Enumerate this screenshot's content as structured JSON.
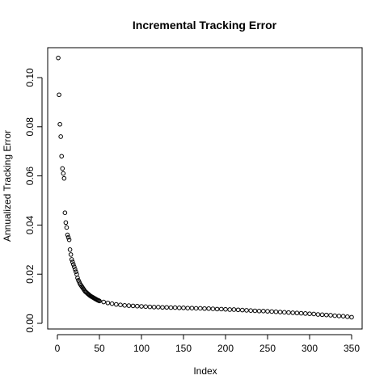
{
  "chart_data": {
    "type": "scatter",
    "title": "Incremental Tracking Error",
    "xlabel": "Index",
    "ylabel": "Annualized Tracking Error",
    "xlim": [
      0,
      350
    ],
    "ylim": [
      0,
      0.11
    ],
    "x_ticks": [
      0,
      50,
      100,
      150,
      200,
      250,
      300,
      350
    ],
    "y_ticks": [
      "0.00",
      "0.02",
      "0.04",
      "0.06",
      "0.08",
      "0.10"
    ],
    "grid": false,
    "legend": "none",
    "marker": "open-circle",
    "color": "#000000",
    "series": [
      {
        "x": [
          1,
          2,
          3,
          4,
          5,
          6,
          7,
          8,
          9,
          10,
          11,
          12,
          13,
          14,
          15,
          16,
          17,
          18,
          19,
          20,
          21,
          22,
          23,
          24,
          25,
          26,
          27,
          28,
          29,
          30,
          31,
          32,
          33,
          34,
          35,
          36,
          37,
          38,
          39,
          40,
          41,
          42,
          43,
          44,
          45,
          46,
          47,
          48,
          49,
          50,
          55,
          60,
          65,
          70,
          75,
          80,
          85,
          90,
          95,
          100,
          105,
          110,
          115,
          120,
          125,
          130,
          135,
          140,
          145,
          150,
          155,
          160,
          165,
          170,
          175,
          180,
          185,
          190,
          195,
          200,
          205,
          210,
          215,
          220,
          225,
          230,
          235,
          240,
          245,
          250,
          255,
          260,
          265,
          270,
          275,
          280,
          285,
          290,
          295,
          300,
          305,
          310,
          315,
          320,
          325,
          330,
          335,
          340,
          345,
          350
        ],
        "y": [
          0.108,
          0.093,
          0.081,
          0.076,
          0.068,
          0.063,
          0.061,
          0.059,
          0.045,
          0.041,
          0.039,
          0.036,
          0.035,
          0.034,
          0.03,
          0.028,
          0.026,
          0.025,
          0.024,
          0.023,
          0.022,
          0.021,
          0.02,
          0.0185,
          0.0175,
          0.0168,
          0.016,
          0.0155,
          0.015,
          0.0145,
          0.014,
          0.0135,
          0.013,
          0.0127,
          0.0124,
          0.0121,
          0.0118,
          0.0115,
          0.0112,
          0.011,
          0.0108,
          0.0106,
          0.0104,
          0.0102,
          0.01,
          0.0098,
          0.0096,
          0.0094,
          0.0093,
          0.0091,
          0.0087,
          0.0083,
          0.008,
          0.0077,
          0.0075,
          0.0073,
          0.0072,
          0.0071,
          0.007,
          0.0069,
          0.0068,
          0.0067,
          0.0066,
          0.0066,
          0.0065,
          0.0065,
          0.0064,
          0.0064,
          0.0063,
          0.0063,
          0.0062,
          0.0062,
          0.0061,
          0.0061,
          0.006,
          0.006,
          0.0059,
          0.0058,
          0.0058,
          0.0057,
          0.0056,
          0.0056,
          0.0055,
          0.0054,
          0.0053,
          0.0052,
          0.0051,
          0.005,
          0.005,
          0.0049,
          0.0048,
          0.0047,
          0.0046,
          0.0045,
          0.0044,
          0.0043,
          0.0042,
          0.0041,
          0.004,
          0.0039,
          0.0038,
          0.0036,
          0.0035,
          0.0034,
          0.0033,
          0.0031,
          0.003,
          0.0029,
          0.0027,
          0.0025
        ]
      }
    ]
  }
}
